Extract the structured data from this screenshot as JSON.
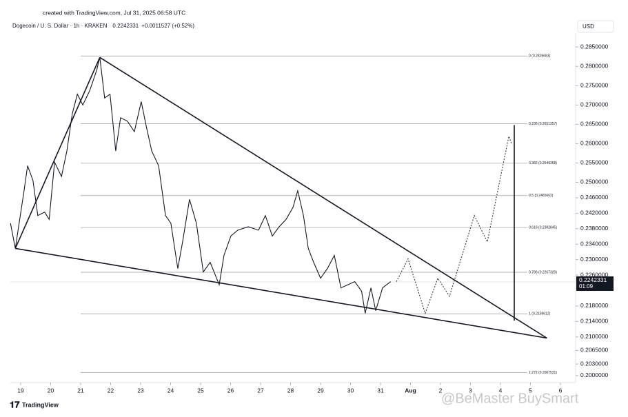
{
  "chart_data": {
    "type": "line",
    "created": "created with TradingView.com, Jul 31, 2025 06:58 UTC",
    "title": "Dogecoin / U. S. Dollar · 1h · KRAKEN",
    "change": "+0.0011527 (+0.52%)",
    "currency": "USD",
    "last_price": {
      "value": 0.2242331,
      "label": "0.2242331"
    },
    "countdown": "01:09",
    "brand": "TradingView",
    "watermark": "@BeMaster BuySmart",
    "color": "#131722",
    "x": [
      18.66,
      18.82,
      19.11,
      19.23,
      19.41,
      19.57,
      19.8,
      19.95,
      20.13,
      20.36,
      20.54,
      20.72,
      20.89,
      21.07,
      21.3,
      21.53,
      21.64,
      21.8,
      21.98,
      22.17,
      22.33,
      22.56,
      22.79,
      23.02,
      23.18,
      23.37,
      23.6,
      23.83,
      24.01,
      24.24,
      24.4,
      24.63,
      24.86,
      25.09,
      25.32,
      25.62,
      25.78,
      26.01,
      26.24,
      26.59,
      26.93,
      27.16,
      27.39,
      27.62,
      27.85,
      28.08,
      28.24,
      28.43,
      28.59,
      28.77,
      29.0,
      29.23,
      29.46,
      29.68,
      29.91,
      30.14,
      30.37,
      30.49,
      30.68,
      30.84,
      31.07,
      31.34
    ],
    "values": [
      0.2394,
      0.2329,
      0.2477,
      0.2543,
      0.2505,
      0.2414,
      0.2423,
      0.2404,
      0.2552,
      0.2515,
      0.2581,
      0.2677,
      0.2728,
      0.27,
      0.2737,
      0.2789,
      0.2823,
      0.2718,
      0.2728,
      0.2581,
      0.2667,
      0.2658,
      0.2631,
      0.2709,
      0.2648,
      0.2581,
      0.2543,
      0.2414,
      0.2394,
      0.2277,
      0.2346,
      0.2456,
      0.2394,
      0.2268,
      0.2293,
      0.2235,
      0.2311,
      0.2361,
      0.2376,
      0.2385,
      0.2376,
      0.2414,
      0.2361,
      0.2385,
      0.2404,
      0.2435,
      0.2478,
      0.2414,
      0.2329,
      0.2293,
      0.2252,
      0.2277,
      0.2311,
      0.2227,
      0.2235,
      0.2243,
      0.2218,
      0.2161,
      0.2227,
      0.2168,
      0.2227,
      0.2243
    ],
    "projection": {
      "x": [
        31.53,
        31.92,
        32.49,
        32.91,
        33.3,
        34.13,
        34.56,
        35.28,
        35.37
      ],
      "values": [
        0.2243,
        0.2302,
        0.2161,
        0.2252,
        0.2205,
        0.2414,
        0.2346,
        0.2619,
        0.26
      ]
    },
    "trend_lines": [
      {
        "x": [
          21.64,
          36.55
        ],
        "values": [
          0.2823,
          0.2097
        ]
      },
      {
        "x": [
          18.82,
          36.55
        ],
        "values": [
          0.2329,
          0.2097
        ]
      },
      {
        "x": [
          18.82,
          21.64
        ],
        "values": [
          0.2329,
          0.2823
        ]
      },
      {
        "x": [
          35.46,
          35.46
        ],
        "values": [
          0.2648,
          0.2142
        ]
      }
    ],
    "fib_levels": [
      {
        "value": 0.2826683,
        "label": "0 (0.2826683)"
      },
      {
        "value": 0.2651357,
        "label": "0.236 (0.2651357)"
      },
      {
        "value": 0.2549358,
        "label": "0.382 (0.2549358)"
      },
      {
        "value": 0.2465662,
        "label": "0.5 (0.2465662)"
      },
      {
        "value": 0.2382845,
        "label": "0.618 (0.2382845)"
      },
      {
        "value": 0.226732,
        "label": "0.786 (0.2267320)"
      },
      {
        "value": 0.2159612,
        "label": "1 (0.2159612)"
      },
      {
        "value": 0.2007531,
        "label": "1.272 (0.2007531)"
      }
    ],
    "fib_xlim": [
      21.0,
      35.9
    ],
    "xlim": [
      18.655,
      37.506
    ],
    "xticks": [
      19,
      20,
      21,
      22,
      23,
      24,
      25,
      26,
      27,
      28,
      29,
      30,
      31,
      {
        "value": 32,
        "label": "Aug"
      },
      {
        "value": 33,
        "label": "2"
      },
      {
        "value": 34,
        "label": "3"
      },
      {
        "value": 35,
        "label": "4"
      },
      {
        "value": 36,
        "label": "5"
      },
      {
        "value": 37,
        "label": "6"
      }
    ],
    "ylim": [
      0.1982,
      0.2886
    ],
    "yticks": [
      {
        "value": 0.285,
        "label": "0.2850000"
      },
      {
        "value": 0.28,
        "label": "0.2800000"
      },
      {
        "value": 0.275,
        "label": "0.2750000"
      },
      {
        "value": 0.27,
        "label": "0.2700000"
      },
      {
        "value": 0.265,
        "label": "0.2650000"
      },
      {
        "value": 0.26,
        "label": "0.2600000"
      },
      {
        "value": 0.255,
        "label": "0.2550000"
      },
      {
        "value": 0.25,
        "label": "0.2500000"
      },
      {
        "value": 0.246,
        "label": "0.2460000"
      },
      {
        "value": 0.242,
        "label": "0.2420000"
      },
      {
        "value": 0.238,
        "label": "0.2380000"
      },
      {
        "value": 0.234,
        "label": "0.2340000"
      },
      {
        "value": 0.23,
        "label": "0.2300000"
      },
      {
        "value": 0.226,
        "label": "0.2260000"
      },
      {
        "value": 0.218,
        "label": "0.2180000"
      },
      {
        "value": 0.214,
        "label": "0.2140000"
      },
      {
        "value": 0.21,
        "label": "0.2100000"
      },
      {
        "value": 0.2065,
        "label": "0.2065000"
      },
      {
        "value": 0.203,
        "label": "0.2030000"
      },
      {
        "value": 0.2,
        "label": "0.2000000"
      }
    ]
  }
}
